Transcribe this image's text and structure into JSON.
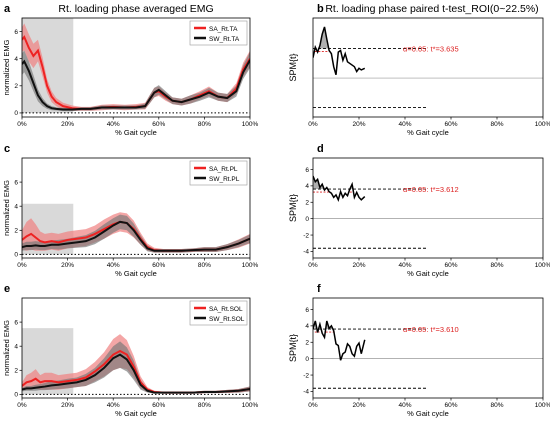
{
  "figure": {
    "left_title": "Rt. loading phase averaged EMG",
    "right_title": "Rt. loading phase paired t-test_ROI(0~22.5%)",
    "xlabel": "% Gait cycle",
    "emg_ylabel": "normalized EMG",
    "spm_ylabel": "SPM{t}"
  },
  "colors": {
    "sa": "#ee2222",
    "sa_band": "#f08080",
    "sw": "#111111",
    "sw_band": "#777777",
    "roi": "#d9d9d9",
    "threshold_text": "#dd2222"
  },
  "chart_data": [
    {
      "type": "line",
      "panel": "a",
      "muscle": "TA",
      "xlim": [
        0,
        100
      ],
      "ylim": [
        -0.3,
        7
      ],
      "xticks": [
        "0%",
        "20%",
        "40%",
        "60%",
        "80%",
        "100%"
      ],
      "yticks": [
        "0",
        "2",
        "4",
        "6"
      ],
      "roi": [
        0,
        22.5
      ],
      "roi_top": 7,
      "legend": {
        "position": "top-right",
        "labels": [
          "SA_Rt.TA",
          "SW_Rt.TA"
        ]
      },
      "series": [
        {
          "name": "SA_Rt.TA",
          "x": [
            0,
            1,
            3,
            5,
            7,
            9,
            11,
            13,
            15,
            18,
            22,
            26,
            30,
            35,
            40,
            45,
            50,
            54,
            56,
            58,
            60,
            63,
            66,
            70,
            74,
            78,
            82,
            86,
            90,
            94,
            97,
            100
          ],
          "y": [
            5.4,
            5.6,
            4.8,
            4.2,
            4.6,
            3.4,
            2.0,
            1.2,
            0.8,
            0.5,
            0.35,
            0.3,
            0.3,
            0.4,
            0.45,
            0.4,
            0.45,
            0.5,
            1.0,
            1.5,
            1.6,
            1.2,
            0.9,
            0.8,
            1.0,
            1.3,
            1.6,
            1.2,
            1.1,
            1.8,
            3.2,
            4.0
          ],
          "sd": [
            0.9,
            1.0,
            1.0,
            0.9,
            0.8,
            0.7,
            0.5,
            0.4,
            0.3,
            0.25,
            0.2,
            0.15,
            0.15,
            0.2,
            0.2,
            0.2,
            0.2,
            0.25,
            0.3,
            0.35,
            0.35,
            0.3,
            0.25,
            0.25,
            0.3,
            0.3,
            0.35,
            0.3,
            0.3,
            0.4,
            0.5,
            0.6
          ]
        },
        {
          "name": "SW_Rt.TA",
          "x": [
            0,
            1,
            3,
            5,
            7,
            9,
            11,
            13,
            15,
            18,
            22,
            26,
            30,
            35,
            40,
            45,
            50,
            54,
            56,
            58,
            60,
            63,
            66,
            70,
            74,
            78,
            82,
            86,
            90,
            94,
            97,
            100
          ],
          "y": [
            3.6,
            3.8,
            3.1,
            2.2,
            1.3,
            0.8,
            0.5,
            0.35,
            0.3,
            0.25,
            0.25,
            0.3,
            0.3,
            0.4,
            0.4,
            0.4,
            0.4,
            0.5,
            1.0,
            1.5,
            1.7,
            1.3,
            0.9,
            0.8,
            1.0,
            1.2,
            1.5,
            1.2,
            1.1,
            1.6,
            3.0,
            3.9
          ],
          "sd": [
            0.8,
            0.8,
            0.7,
            0.6,
            0.45,
            0.3,
            0.2,
            0.15,
            0.12,
            0.12,
            0.12,
            0.12,
            0.12,
            0.15,
            0.15,
            0.15,
            0.15,
            0.2,
            0.3,
            0.35,
            0.35,
            0.3,
            0.25,
            0.25,
            0.3,
            0.3,
            0.35,
            0.3,
            0.3,
            0.4,
            0.5,
            0.6
          ]
        }
      ]
    },
    {
      "type": "line",
      "panel": "b",
      "muscle": "TA",
      "xlim": [
        0,
        100
      ],
      "ylim": [
        -4.8,
        7.4
      ],
      "xticks": [
        "0%",
        "20%",
        "40%",
        "60%",
        "80%",
        "100%"
      ],
      "yticks": [],
      "threshold": 3.635,
      "threshold_label": "α=0.05:  t*=3.635",
      "x": [
        0,
        1,
        2,
        3,
        4,
        5,
        6,
        7,
        8,
        9,
        10,
        11,
        12,
        13,
        14,
        15,
        16,
        17,
        18,
        19,
        20,
        21,
        22.5
      ],
      "y": [
        2.5,
        3.8,
        3.2,
        4.0,
        5.4,
        6.3,
        4.8,
        3.4,
        3.0,
        1.4,
        0.4,
        3.2,
        3.4,
        2.2,
        3.0,
        2.0,
        1.8,
        1.6,
        1.4,
        0.8,
        1.2,
        1.0,
        1.2
      ],
      "supra": [
        [
          0.8,
          7.6
        ]
      ]
    },
    {
      "type": "line",
      "panel": "c",
      "muscle": "PL",
      "xlim": [
        0,
        100
      ],
      "ylim": [
        -0.3,
        8
      ],
      "xticks": [
        "0%",
        "20%",
        "40%",
        "60%",
        "80%",
        "100%"
      ],
      "yticks": [
        "0",
        "2",
        "4",
        "6"
      ],
      "roi": [
        0,
        22.5
      ],
      "roi_top": 4.2,
      "legend": {
        "position": "top-right",
        "labels": [
          "SA_Rt.PL",
          "SW_Rt.PL"
        ]
      },
      "series": [
        {
          "name": "SA_Rt.PL",
          "x": [
            0,
            2,
            4,
            6,
            8,
            10,
            13,
            16,
            20,
            24,
            28,
            32,
            36,
            40,
            43,
            46,
            49,
            52,
            55,
            58,
            62,
            66,
            70,
            75,
            80,
            85,
            90,
            95,
            100
          ],
          "y": [
            1.2,
            1.5,
            1.7,
            1.4,
            1.1,
            1.0,
            1.1,
            1.0,
            1.2,
            1.3,
            1.4,
            1.7,
            2.1,
            2.5,
            2.7,
            2.6,
            2.1,
            1.3,
            0.6,
            0.35,
            0.3,
            0.3,
            0.3,
            0.35,
            0.4,
            0.4,
            0.6,
            0.9,
            1.3
          ],
          "sd": [
            0.8,
            1.2,
            1.3,
            1.1,
            0.8,
            0.7,
            0.7,
            0.7,
            0.7,
            0.7,
            0.7,
            0.7,
            0.8,
            0.8,
            0.8,
            0.8,
            0.7,
            0.5,
            0.3,
            0.2,
            0.15,
            0.15,
            0.15,
            0.15,
            0.2,
            0.2,
            0.25,
            0.35,
            0.4
          ]
        },
        {
          "name": "SW_Rt.PL",
          "x": [
            0,
            2,
            4,
            6,
            8,
            10,
            13,
            16,
            20,
            24,
            28,
            32,
            36,
            40,
            43,
            46,
            49,
            52,
            55,
            58,
            62,
            66,
            70,
            75,
            80,
            85,
            90,
            95,
            100
          ],
          "y": [
            0.6,
            0.7,
            0.7,
            0.75,
            0.7,
            0.7,
            0.8,
            0.8,
            0.9,
            1.0,
            1.1,
            1.4,
            1.9,
            2.4,
            2.7,
            2.6,
            2.0,
            1.2,
            0.5,
            0.3,
            0.3,
            0.3,
            0.3,
            0.35,
            0.4,
            0.4,
            0.6,
            0.9,
            1.3
          ],
          "sd": [
            0.3,
            0.35,
            0.35,
            0.35,
            0.35,
            0.35,
            0.35,
            0.4,
            0.4,
            0.45,
            0.5,
            0.55,
            0.6,
            0.6,
            0.6,
            0.6,
            0.55,
            0.4,
            0.25,
            0.15,
            0.15,
            0.15,
            0.15,
            0.15,
            0.2,
            0.2,
            0.25,
            0.3,
            0.35
          ]
        }
      ]
    },
    {
      "type": "line",
      "panel": "d",
      "muscle": "PL",
      "xlim": [
        0,
        100
      ],
      "ylim": [
        -4.8,
        7.4
      ],
      "xticks": [
        "0%",
        "20%",
        "40%",
        "60%",
        "80%",
        "100%"
      ],
      "yticks": [
        "-4",
        "-2",
        "0",
        "2",
        "4",
        "6"
      ],
      "threshold": 3.612,
      "threshold_label": "α=0.05:  t*=3.612",
      "x": [
        0,
        1,
        2,
        3,
        4,
        5,
        6,
        7,
        8,
        9,
        10,
        11,
        12,
        13,
        14,
        15,
        16,
        17,
        18,
        19,
        20,
        21,
        22.5
      ],
      "y": [
        5.2,
        4.5,
        4.8,
        3.8,
        4.2,
        3.5,
        3.8,
        3.3,
        3.1,
        2.6,
        2.9,
        2.3,
        3.3,
        2.6,
        3.1,
        2.8,
        3.6,
        4.2,
        2.6,
        3.2,
        2.6,
        2.3,
        2.7
      ],
      "supra": [
        [
          0,
          6.8
        ],
        [
          16,
          17.8
        ]
      ]
    },
    {
      "type": "line",
      "panel": "e",
      "muscle": "SOL",
      "xlim": [
        0,
        100
      ],
      "ylim": [
        -0.3,
        8
      ],
      "xticks": [
        "0%",
        "20%",
        "40%",
        "60%",
        "80%",
        "100%"
      ],
      "yticks": [
        "0",
        "2",
        "4",
        "6"
      ],
      "roi": [
        0,
        22.5
      ],
      "roi_top": 5.5,
      "legend": {
        "position": "top-right",
        "labels": [
          "SA_Rt.SOL",
          "SW_Rt.SOL"
        ]
      },
      "series": [
        {
          "name": "SA_Rt.SOL",
          "x": [
            0,
            2,
            4,
            6,
            8,
            10,
            13,
            16,
            20,
            24,
            28,
            32,
            36,
            40,
            43,
            46,
            49,
            52,
            55,
            58,
            62,
            66,
            70,
            75,
            80,
            85,
            90,
            95,
            100
          ],
          "y": [
            0.7,
            1.0,
            1.1,
            1.3,
            1.0,
            1.1,
            1.1,
            1.0,
            1.1,
            1.2,
            1.4,
            1.9,
            2.5,
            3.3,
            3.6,
            3.3,
            2.3,
            1.0,
            0.4,
            0.2,
            0.15,
            0.15,
            0.15,
            0.15,
            0.2,
            0.2,
            0.25,
            0.3,
            0.45
          ],
          "sd": [
            0.3,
            0.6,
            0.7,
            0.8,
            0.6,
            0.7,
            0.7,
            0.6,
            0.6,
            0.6,
            0.7,
            0.8,
            1.0,
            1.3,
            1.4,
            1.2,
            0.9,
            0.5,
            0.2,
            0.1,
            0.08,
            0.08,
            0.08,
            0.08,
            0.1,
            0.1,
            0.12,
            0.15,
            0.2
          ]
        },
        {
          "name": "SW_Rt.SOL",
          "x": [
            0,
            2,
            4,
            6,
            8,
            10,
            13,
            16,
            20,
            24,
            28,
            32,
            36,
            40,
            43,
            46,
            49,
            52,
            55,
            58,
            62,
            66,
            70,
            75,
            80,
            85,
            90,
            95,
            100
          ],
          "y": [
            0.4,
            0.5,
            0.5,
            0.55,
            0.6,
            0.65,
            0.75,
            0.8,
            0.9,
            1.0,
            1.2,
            1.6,
            2.2,
            3.0,
            3.3,
            2.9,
            2.0,
            0.8,
            0.3,
            0.15,
            0.15,
            0.15,
            0.15,
            0.15,
            0.2,
            0.2,
            0.25,
            0.3,
            0.45
          ],
          "sd": [
            0.15,
            0.2,
            0.2,
            0.25,
            0.25,
            0.3,
            0.35,
            0.35,
            0.4,
            0.4,
            0.5,
            0.6,
            0.8,
            1.0,
            1.1,
            1.0,
            0.8,
            0.4,
            0.15,
            0.08,
            0.08,
            0.08,
            0.08,
            0.08,
            0.1,
            0.1,
            0.12,
            0.15,
            0.2
          ]
        }
      ]
    },
    {
      "type": "line",
      "panel": "f",
      "muscle": "SOL",
      "xlim": [
        0,
        100
      ],
      "ylim": [
        -4.8,
        7.4
      ],
      "xticks": [
        "0%",
        "20%",
        "40%",
        "60%",
        "80%",
        "100%"
      ],
      "yticks": [
        "-4",
        "-2",
        "0",
        "2",
        "4",
        "6"
      ],
      "threshold": 3.61,
      "threshold_label": "α=0.05:  t*=3.610",
      "x": [
        0,
        1,
        2,
        3,
        4,
        5,
        6,
        7,
        8,
        9,
        10,
        11,
        12,
        13,
        14,
        15,
        16,
        17,
        18,
        19,
        20,
        21,
        22.5
      ],
      "y": [
        3.6,
        4.6,
        3.2,
        4.2,
        3.1,
        2.6,
        4.6,
        3.7,
        4.0,
        3.4,
        1.8,
        1.6,
        -0.2,
        0.6,
        0.8,
        1.8,
        1.5,
        0.6,
        0.3,
        1.5,
        1.9,
        0.6,
        2.3
      ],
      "supra": [
        [
          0.8,
          2.8
        ],
        [
          5.5,
          9.5
        ]
      ]
    }
  ]
}
